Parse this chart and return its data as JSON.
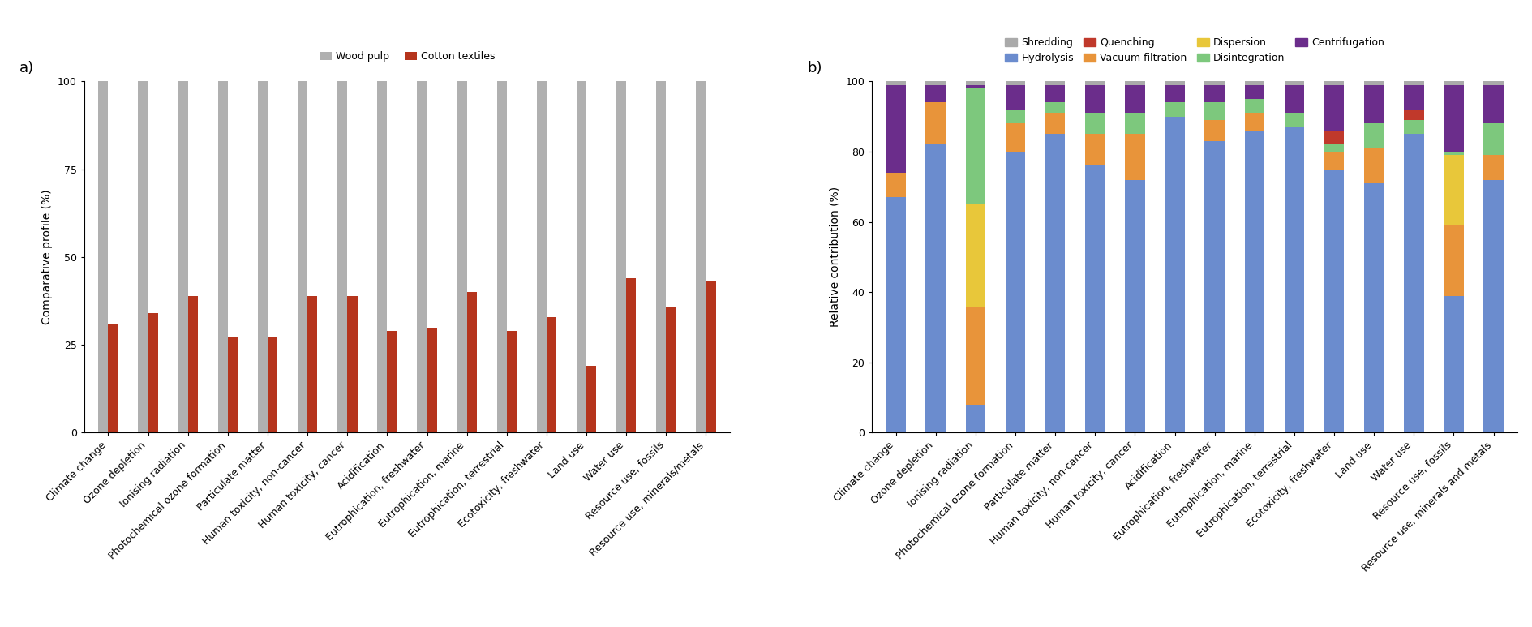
{
  "categories": [
    "Climate change",
    "Ozone depletion",
    "Ionising radiation",
    "Photochemical ozone formation",
    "Particulate matter",
    "Human toxicity, non-cancer",
    "Human toxicity, cancer",
    "Acidification",
    "Eutrophication, freshwater",
    "Eutrophication, marine",
    "Eutrophication, terrestrial",
    "Ecotoxicity, freshwater",
    "Land use",
    "Water use",
    "Resource use, fossils",
    "Resource use, minerals/metals"
  ],
  "categories_b": [
    "Climate change",
    "Ozone depletion",
    "Ionising radiation",
    "Photochemical ozone formation",
    "Particulate matter",
    "Human toxicity, non-cancer",
    "Human toxicity, cancer",
    "Acidification",
    "Eutrophication, freshwater",
    "Eutrophication, marine",
    "Eutrophication, terrestrial",
    "Ecotoxicity, freshwater",
    "Land use",
    "Water use",
    "Resource use, fossils",
    "Resource use, minerals and metals"
  ],
  "wood_pulp": [
    100,
    100,
    100,
    100,
    100,
    100,
    100,
    100,
    100,
    100,
    100,
    100,
    100,
    100,
    100,
    100
  ],
  "cotton_textiles": [
    31,
    34,
    39,
    27,
    27,
    39,
    39,
    29,
    30,
    40,
    29,
    33,
    19,
    44,
    36,
    43
  ],
  "wood_pulp_color": "#b0b0b0",
  "cotton_textiles_color": "#b5341c",
  "stacked_data": {
    "Hydrolysis": [
      67,
      82,
      8,
      80,
      85,
      76,
      72,
      90,
      83,
      86,
      87,
      75,
      71,
      85,
      39,
      72
    ],
    "Vacuum filtration": [
      7,
      12,
      28,
      8,
      6,
      9,
      13,
      0,
      6,
      5,
      0,
      5,
      10,
      0,
      20,
      7
    ],
    "Dispersion": [
      0,
      0,
      29,
      0,
      0,
      0,
      0,
      0,
      0,
      0,
      0,
      0,
      0,
      0,
      20,
      0
    ],
    "Disintegration": [
      0,
      0,
      33,
      4,
      3,
      6,
      6,
      4,
      5,
      4,
      4,
      2,
      7,
      4,
      1,
      9
    ],
    "Quenching": [
      0,
      0,
      0,
      0,
      0,
      0,
      0,
      0,
      0,
      0,
      0,
      4,
      0,
      3,
      0,
      0
    ],
    "Centrifugation": [
      25,
      5,
      1,
      7,
      5,
      8,
      8,
      5,
      5,
      4,
      8,
      13,
      11,
      7,
      19,
      11
    ],
    "Shredding": [
      1,
      1,
      1,
      1,
      1,
      1,
      1,
      1,
      1,
      1,
      1,
      1,
      1,
      1,
      1,
      1
    ]
  },
  "stacked_colors": {
    "Shredding": "#aaaaaa",
    "Hydrolysis": "#6b8cce",
    "Quenching": "#c0392b",
    "Vacuum filtration": "#e8943a",
    "Dispersion": "#e8c73a",
    "Disintegration": "#7dc87d",
    "Centrifugation": "#6b2d8b"
  },
  "legend_order_b": [
    "Shredding",
    "Hydrolysis",
    "Quenching",
    "Vacuum filtration",
    "Dispersion",
    "Disintegration",
    "Centrifugation"
  ],
  "stack_order": [
    "Hydrolysis",
    "Vacuum filtration",
    "Dispersion",
    "Disintegration",
    "Quenching",
    "Centrifugation",
    "Shredding"
  ],
  "panel_a_ylabel": "Comparative profile (%)",
  "panel_b_ylabel": "Relative contribution (%)",
  "ylim_a": [
    0,
    100
  ],
  "ylim_b": [
    0,
    100
  ],
  "background_color": "#ffffff",
  "tick_fontsize": 9,
  "label_fontsize": 10,
  "legend_fontsize": 9
}
